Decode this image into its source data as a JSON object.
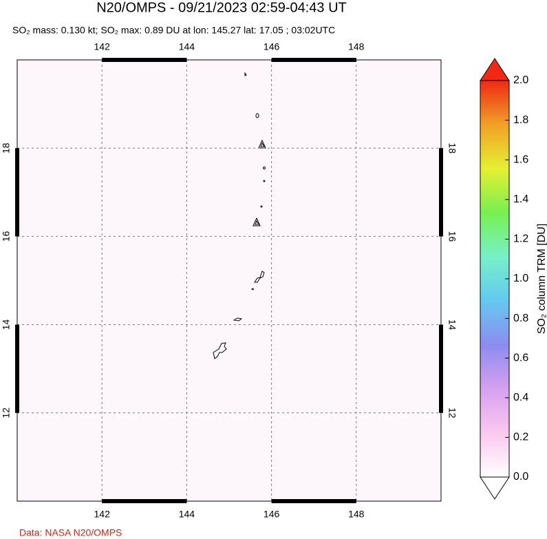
{
  "chart_data": {
    "type": "map",
    "title": "N20/OMPS - 09/21/2023 02:59-04:43 UT",
    "subtitle": "SO₂ mass: 0.130 kt; SO₂ max: 0.89 DU at lon: 145.27 lat: 17.05 ; 03:02UTC",
    "xlim": [
      140,
      150
    ],
    "xticks": [
      142,
      144,
      146,
      148
    ],
    "ylim": [
      10,
      20
    ],
    "yticks": [
      12,
      14,
      16,
      18
    ],
    "grid": true,
    "colorbar": {
      "label": "SO₂ column TRM [DU]",
      "lim": [
        0,
        2
      ],
      "ticks": [
        {
          "value": 0,
          "label": "0.0"
        },
        0.2,
        0.4,
        0.6,
        0.8,
        {
          "value": 1,
          "label": "1.0"
        },
        1.2,
        1.4,
        1.6,
        1.8,
        {
          "value": 2,
          "label": "2.0"
        }
      ],
      "colormap": [
        "#ffffff",
        "#fbc8f0",
        "#d6a0f0",
        "#8c8cf0",
        "#64c8f0",
        "#78f0c8",
        "#78f050",
        "#e6f032",
        "#f0a028",
        "#f02814"
      ]
    },
    "credit": "Data: NASA N20/OMPS"
  }
}
